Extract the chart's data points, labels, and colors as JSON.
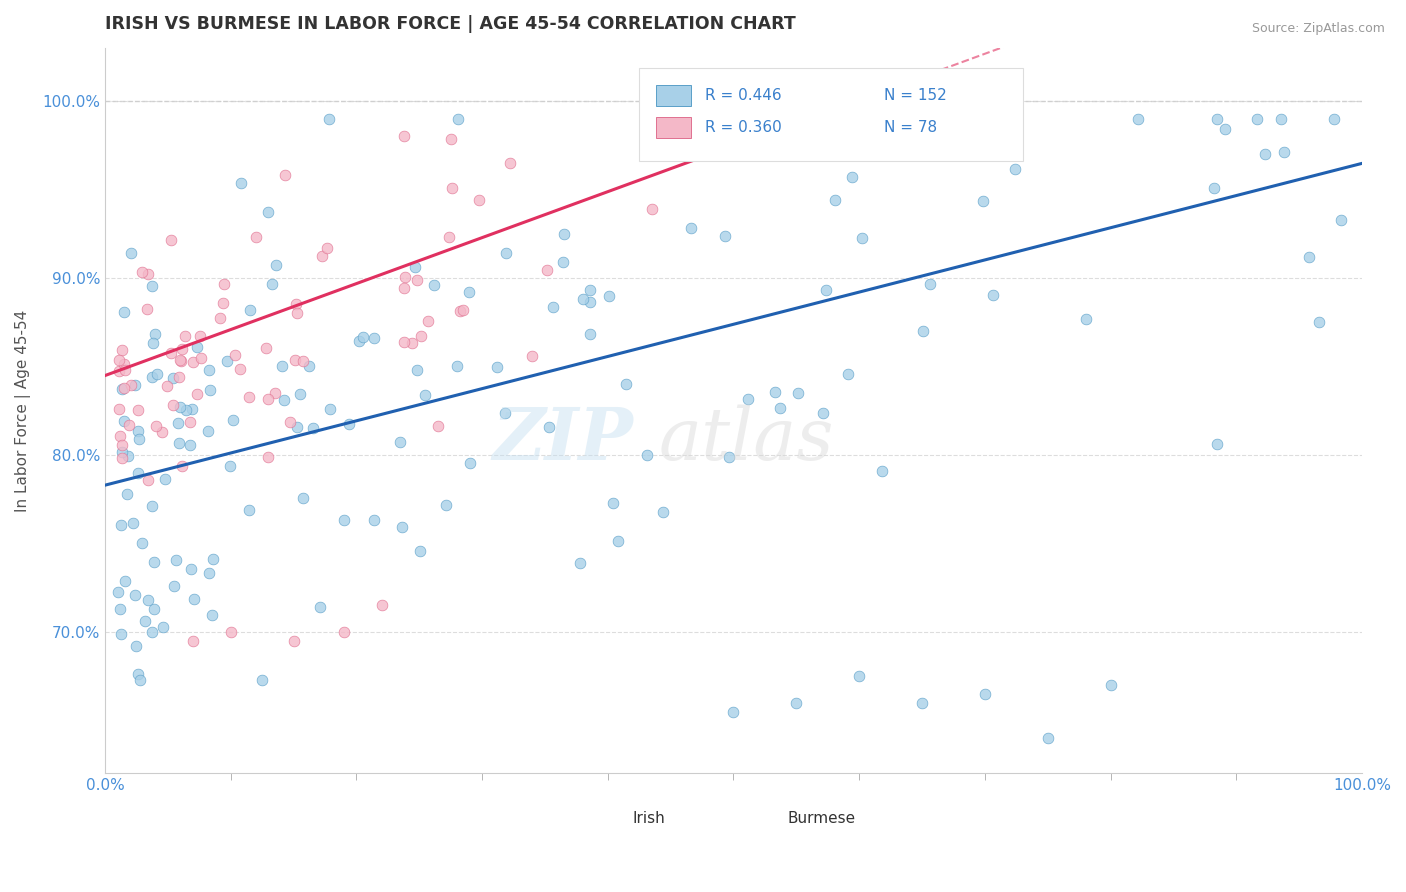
{
  "title": "IRISH VS BURMESE IN LABOR FORCE | AGE 45-54 CORRELATION CHART",
  "source": "Source: ZipAtlas.com",
  "ylabel": "In Labor Force | Age 45-54",
  "yticks": [
    "70.0%",
    "80.0%",
    "90.0%",
    "100.0%"
  ],
  "ytick_vals": [
    0.7,
    0.8,
    0.9,
    1.0
  ],
  "legend_irish": {
    "R": 0.446,
    "N": 152
  },
  "legend_burmese": {
    "R": 0.36,
    "N": 78
  },
  "irish_color": "#a8d0e8",
  "irish_edge_color": "#5a9fc8",
  "burmese_color": "#f4b8c8",
  "burmese_edge_color": "#e07090",
  "trend_irish_color": "#2060b0",
  "trend_burmese_color": "#e03060",
  "bg_color": "#ffffff",
  "xlim": [
    0.0,
    1.0
  ],
  "ylim": [
    0.62,
    1.03
  ]
}
